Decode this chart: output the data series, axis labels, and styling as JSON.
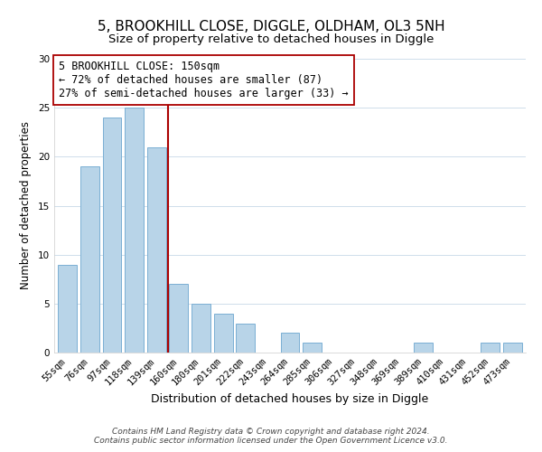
{
  "title": "5, BROOKHILL CLOSE, DIGGLE, OLDHAM, OL3 5NH",
  "subtitle": "Size of property relative to detached houses in Diggle",
  "xlabel": "Distribution of detached houses by size in Diggle",
  "ylabel": "Number of detached properties",
  "categories": [
    "55sqm",
    "76sqm",
    "97sqm",
    "118sqm",
    "139sqm",
    "160sqm",
    "180sqm",
    "201sqm",
    "222sqm",
    "243sqm",
    "264sqm",
    "285sqm",
    "306sqm",
    "327sqm",
    "348sqm",
    "369sqm",
    "389sqm",
    "410sqm",
    "431sqm",
    "452sqm",
    "473sqm"
  ],
  "values": [
    9,
    19,
    24,
    25,
    21,
    7,
    5,
    4,
    3,
    0,
    2,
    1,
    0,
    0,
    0,
    0,
    1,
    0,
    0,
    1,
    1
  ],
  "bar_color": "#b8d4e8",
  "bar_edge_color": "#7bafd4",
  "vline_x": 4.5,
  "vline_color": "#aa0000",
  "annotation_text_line1": "5 BROOKHILL CLOSE: 150sqm",
  "annotation_text_line2": "← 72% of detached houses are smaller (87)",
  "annotation_text_line3": "27% of semi-detached houses are larger (33) →",
  "box_edge_color": "#aa0000",
  "ylim": [
    0,
    30
  ],
  "yticks": [
    0,
    5,
    10,
    15,
    20,
    25,
    30
  ],
  "footer_line1": "Contains HM Land Registry data © Crown copyright and database right 2024.",
  "footer_line2": "Contains public sector information licensed under the Open Government Licence v3.0.",
  "title_fontsize": 11,
  "subtitle_fontsize": 9.5,
  "xlabel_fontsize": 9,
  "ylabel_fontsize": 8.5,
  "tick_fontsize": 7.5,
  "annotation_fontsize": 8.5,
  "footer_fontsize": 6.5
}
